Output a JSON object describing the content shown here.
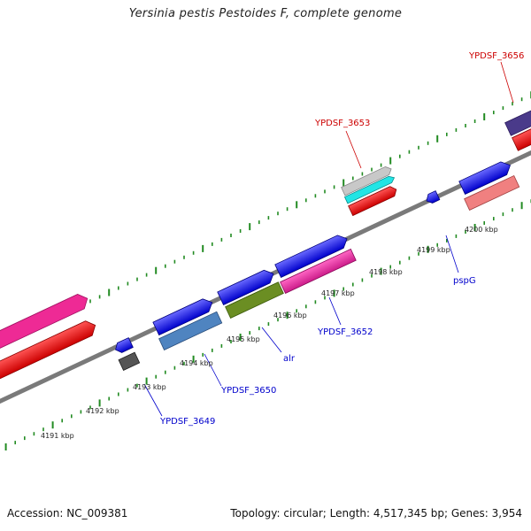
{
  "title": "Yersinia pestis Pestoides F, complete genome",
  "footer": {
    "accession": "Accession: NC_009381",
    "summary": "Topology: circular; Length: 4,517,345 bp; Genes: 3,954"
  },
  "colors": {
    "backbone": "#808080",
    "tick": "#228b22",
    "label_blue": "#0000cc",
    "label_red": "#cc0000"
  },
  "scale": {
    "unit": "kbp",
    "ticks": [
      "4191 kbp",
      "4192 kbp",
      "4193 kbp",
      "4194 kbp",
      "4195 kbp",
      "4196 kbp",
      "4197 kbp",
      "4198 kbp",
      "4199 kbp",
      "4200 kbp"
    ]
  },
  "genes": {
    "ypdsf_3649": "YPDSF_3649",
    "ypdsf_3650": "YPDSF_3650",
    "alr": "alr",
    "ypdsf_3652": "YPDSF_3652",
    "pspg": "pspG",
    "ypdsf_3653": "YPDSF_3653",
    "ypdsf_3656": "YPDSF_3656"
  }
}
